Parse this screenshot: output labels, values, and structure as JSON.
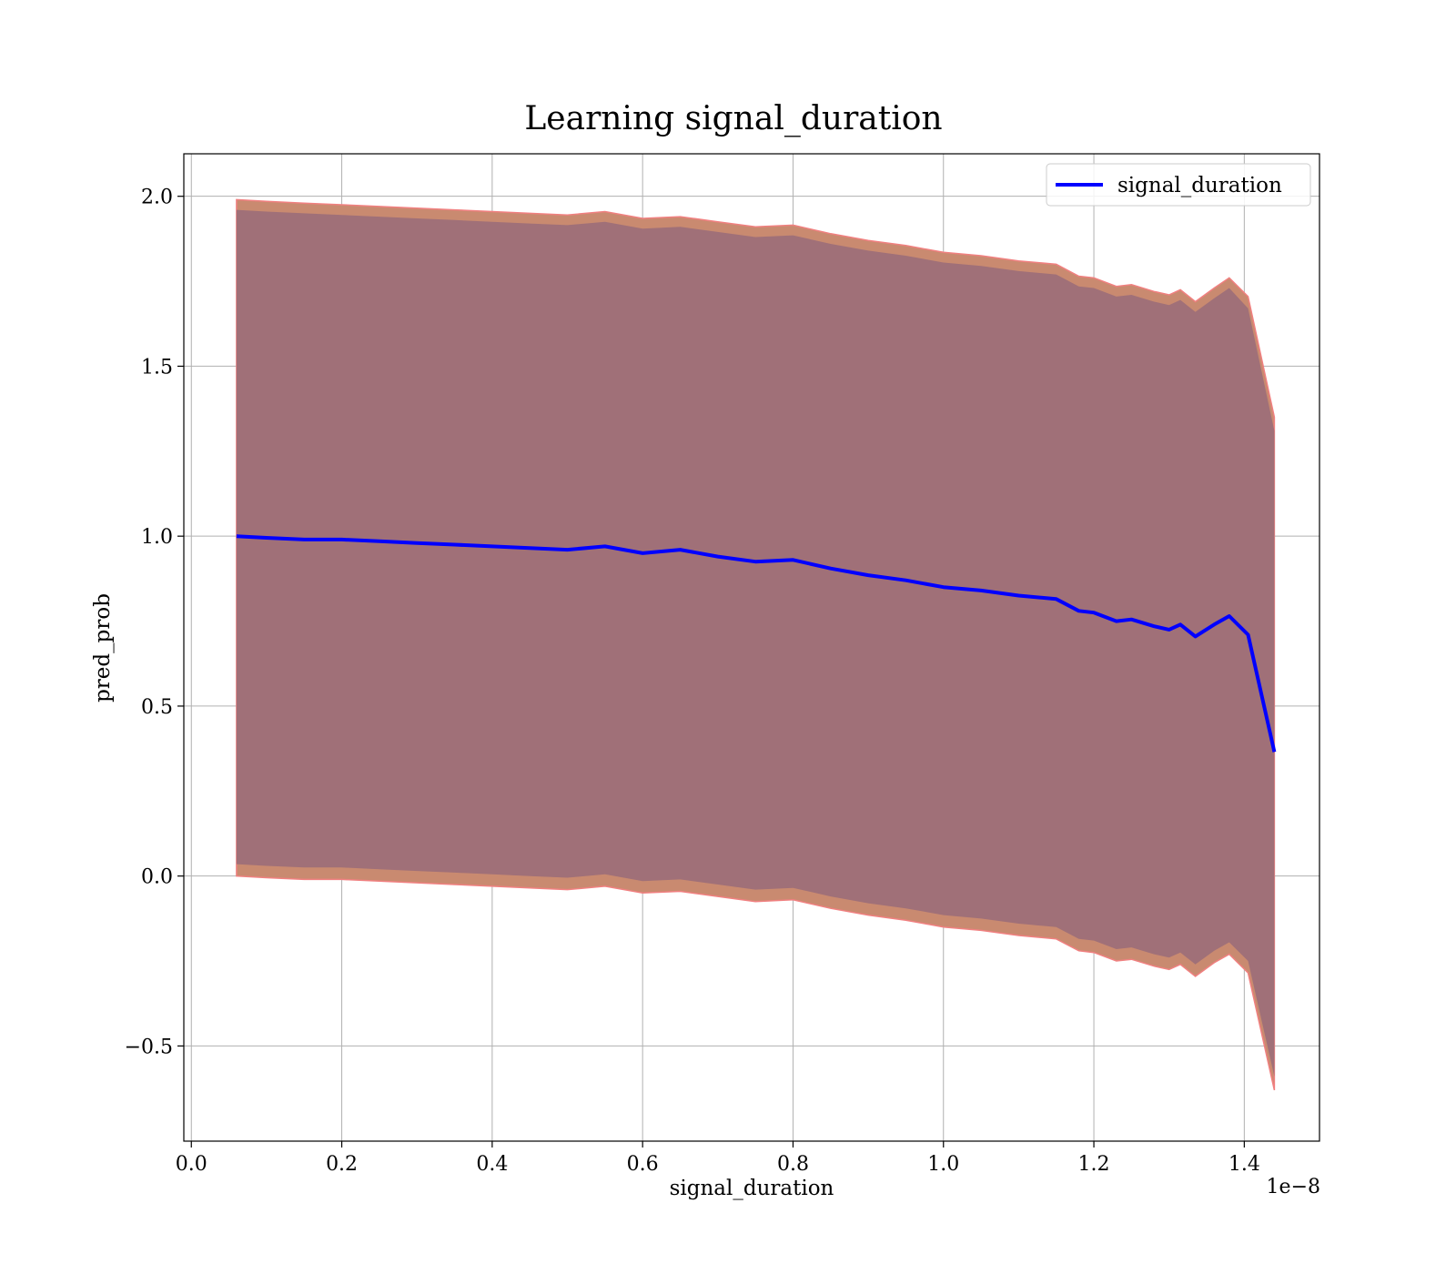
{
  "chart_data": {
    "type": "line",
    "title": "Learning signal_duration",
    "xlabel": "signal_duration",
    "ylabel": "pred_prob",
    "x_offset_label": "1e−8",
    "xlim": [
      -0.01,
      1.5
    ],
    "ylim": [
      -0.78,
      2.125
    ],
    "x_ticks": [
      0.0,
      0.2,
      0.4,
      0.6,
      0.8,
      1.0,
      1.2,
      1.4
    ],
    "x_tick_labels": [
      "0.0",
      "0.2",
      "0.4",
      "0.6",
      "0.8",
      "1.0",
      "1.2",
      "1.4"
    ],
    "y_ticks": [
      -0.5,
      0.0,
      0.5,
      1.0,
      1.5,
      2.0
    ],
    "y_tick_labels": [
      "−0.5",
      "0.0",
      "0.5",
      "1.0",
      "1.5",
      "2.0"
    ],
    "grid": true,
    "legend_position": "top-right",
    "colors": {
      "line": "#0000ff",
      "band_outer": "#c98a70",
      "band_outer_edge": "#f08080",
      "band_inner": "#a07078"
    },
    "x": [
      0.06,
      0.1,
      0.15,
      0.2,
      0.25,
      0.3,
      0.35,
      0.4,
      0.45,
      0.5,
      0.55,
      0.6,
      0.65,
      0.7,
      0.75,
      0.8,
      0.85,
      0.9,
      0.95,
      1.0,
      1.05,
      1.1,
      1.15,
      1.18,
      1.2,
      1.23,
      1.25,
      1.28,
      1.3,
      1.315,
      1.335,
      1.36,
      1.38,
      1.405,
      1.44
    ],
    "series": [
      {
        "name": "signal_duration",
        "values": [
          1.0,
          0.995,
          0.99,
          0.99,
          0.985,
          0.98,
          0.975,
          0.97,
          0.965,
          0.96,
          0.97,
          0.95,
          0.96,
          0.94,
          0.925,
          0.93,
          0.905,
          0.885,
          0.87,
          0.85,
          0.84,
          0.825,
          0.815,
          0.78,
          0.775,
          0.75,
          0.755,
          0.735,
          0.725,
          0.74,
          0.705,
          0.74,
          0.765,
          0.71,
          0.365
        ],
        "upper_outer": [
          1.99,
          1.985,
          1.98,
          1.975,
          1.97,
          1.965,
          1.96,
          1.955,
          1.95,
          1.945,
          1.955,
          1.935,
          1.94,
          1.925,
          1.91,
          1.915,
          1.89,
          1.87,
          1.855,
          1.835,
          1.825,
          1.81,
          1.8,
          1.765,
          1.76,
          1.735,
          1.74,
          1.72,
          1.71,
          1.725,
          1.69,
          1.73,
          1.76,
          1.705,
          1.35
        ],
        "upper_inner": [
          1.96,
          1.955,
          1.95,
          1.945,
          1.94,
          1.935,
          1.93,
          1.925,
          1.92,
          1.915,
          1.925,
          1.905,
          1.91,
          1.895,
          1.88,
          1.885,
          1.86,
          1.84,
          1.825,
          1.805,
          1.795,
          1.78,
          1.77,
          1.735,
          1.73,
          1.705,
          1.71,
          1.69,
          1.68,
          1.695,
          1.66,
          1.7,
          1.73,
          1.67,
          1.31
        ],
        "lower_inner": [
          0.035,
          0.03,
          0.025,
          0.025,
          0.02,
          0.015,
          0.01,
          0.005,
          0.0,
          -0.005,
          0.005,
          -0.015,
          -0.01,
          -0.025,
          -0.04,
          -0.035,
          -0.06,
          -0.08,
          -0.095,
          -0.115,
          -0.125,
          -0.14,
          -0.15,
          -0.185,
          -0.19,
          -0.215,
          -0.21,
          -0.23,
          -0.24,
          -0.225,
          -0.26,
          -0.22,
          -0.195,
          -0.25,
          -0.59
        ],
        "lower_outer": [
          0.0,
          -0.005,
          -0.01,
          -0.01,
          -0.015,
          -0.02,
          -0.025,
          -0.03,
          -0.035,
          -0.04,
          -0.03,
          -0.05,
          -0.045,
          -0.06,
          -0.075,
          -0.07,
          -0.095,
          -0.115,
          -0.13,
          -0.15,
          -0.16,
          -0.175,
          -0.185,
          -0.22,
          -0.225,
          -0.25,
          -0.245,
          -0.265,
          -0.275,
          -0.26,
          -0.295,
          -0.255,
          -0.23,
          -0.285,
          -0.63
        ]
      }
    ]
  }
}
